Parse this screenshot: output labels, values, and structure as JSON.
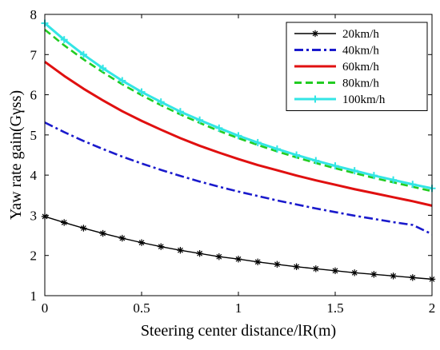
{
  "chart_data": {
    "type": "line",
    "title": "",
    "xlabel": "Steering center distance/lR(m)",
    "ylabel": "Yaw rate gain(Gγss)",
    "xlim": [
      0,
      2
    ],
    "ylim": [
      1,
      8
    ],
    "xticks": [
      0,
      0.5,
      1,
      1.5,
      2
    ],
    "xtick_labels": [
      "0",
      "0.5",
      "1",
      "1.5",
      "2"
    ],
    "yticks": [
      1,
      2,
      3,
      4,
      5,
      6,
      7,
      8
    ],
    "ytick_labels": [
      "1",
      "2",
      "3",
      "4",
      "5",
      "6",
      "7",
      "8"
    ],
    "grid": false,
    "legend_position": "top-right",
    "x": [
      0,
      0.1,
      0.2,
      0.3,
      0.4,
      0.5,
      0.6,
      0.7,
      0.8,
      0.9,
      1.0,
      1.1,
      1.2,
      1.3,
      1.4,
      1.5,
      1.6,
      1.7,
      1.8,
      1.9,
      2.0
    ],
    "series": [
      {
        "name": "20km/h",
        "color": "#000000",
        "line_style": "solid",
        "marker": "asterisk",
        "values": [
          2.97,
          2.82,
          2.68,
          2.55,
          2.43,
          2.32,
          2.22,
          2.13,
          2.05,
          1.97,
          1.91,
          1.84,
          1.78,
          1.72,
          1.67,
          1.62,
          1.57,
          1.53,
          1.49,
          1.45,
          1.41
        ]
      },
      {
        "name": "40km/h",
        "color": "#1a1acc",
        "line_style": "dashdot",
        "marker": "none",
        "values": [
          5.31,
          5.07,
          4.85,
          4.65,
          4.46,
          4.29,
          4.13,
          3.98,
          3.84,
          3.71,
          3.59,
          3.48,
          3.37,
          3.27,
          3.17,
          3.08,
          2.99,
          2.91,
          2.83,
          2.76,
          2.53
        ]
      },
      {
        "name": "60km/h",
        "color": "#e01010",
        "line_style": "solid",
        "marker": "none",
        "values": [
          6.82,
          6.47,
          6.15,
          5.86,
          5.59,
          5.35,
          5.13,
          4.92,
          4.73,
          4.56,
          4.4,
          4.25,
          4.12,
          3.99,
          3.87,
          3.76,
          3.65,
          3.55,
          3.45,
          3.35,
          3.24
        ]
      },
      {
        "name": "80km/h",
        "color": "#22cc22",
        "line_style": "dashed",
        "marker": "none",
        "values": [
          7.62,
          7.23,
          6.88,
          6.56,
          6.26,
          5.99,
          5.74,
          5.51,
          5.3,
          5.1,
          4.92,
          4.75,
          4.59,
          4.44,
          4.3,
          4.17,
          4.05,
          3.93,
          3.82,
          3.71,
          3.6
        ]
      },
      {
        "name": "100km/h",
        "color": "#33e5e5",
        "line_style": "solid",
        "marker": "plus",
        "values": [
          7.78,
          7.37,
          7.0,
          6.66,
          6.35,
          6.07,
          5.82,
          5.58,
          5.37,
          5.17,
          4.98,
          4.81,
          4.65,
          4.5,
          4.36,
          4.23,
          4.11,
          3.99,
          3.88,
          3.77,
          3.67
        ]
      }
    ]
  }
}
